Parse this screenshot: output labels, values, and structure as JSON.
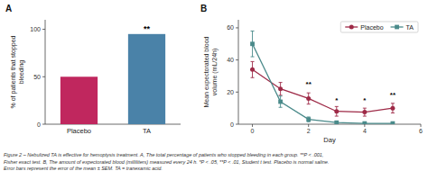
{
  "chart_data": [
    {
      "type": "bar",
      "title": "A",
      "categories": [
        "Placebo",
        "TA"
      ],
      "values": [
        50,
        95
      ],
      "colors": [
        "#c0275e",
        "#4a82a8"
      ],
      "ylabel": "% of patients that stopped\nbleeding",
      "ylim": [
        0,
        110
      ],
      "yticks": [
        0,
        50,
        100
      ],
      "annotations": [
        {
          "x": "TA",
          "y": 97,
          "text": "**"
        }
      ]
    },
    {
      "type": "line",
      "title": "B",
      "x": [
        0,
        1,
        2,
        3,
        4,
        5
      ],
      "series": [
        {
          "name": "Placebo",
          "color": "#9e2a47",
          "marker": "circle",
          "values": [
            34,
            22,
            16,
            8,
            7.5,
            10
          ],
          "errors": [
            5,
            4,
            3.5,
            3,
            2.5,
            3
          ]
        },
        {
          "name": "TA",
          "color": "#4a8a8a",
          "marker": "square",
          "values": [
            50,
            14,
            3,
            1,
            0.5,
            0.5
          ],
          "errors": [
            8,
            3.5,
            1.5,
            0.8,
            0.5,
            0.5
          ]
        }
      ],
      "xlabel": "Day",
      "ylabel": "Mean expectorated blood\nvolume (mL/24h)",
      "xlim": [
        -0.5,
        6
      ],
      "ylim": [
        0,
        65
      ],
      "xticks": [
        0,
        2,
        4,
        6
      ],
      "yticks": [
        0,
        20,
        40,
        60
      ],
      "legend": "upper-right",
      "annotations": [
        {
          "x": 2,
          "y": 23,
          "text": "**"
        },
        {
          "x": 3,
          "y": 13,
          "text": "*"
        },
        {
          "x": 4,
          "y": 13,
          "text": "*"
        },
        {
          "x": 5,
          "y": 16,
          "text": "**"
        }
      ]
    }
  ],
  "caption": "Figure 2 – Nebulized TA is effective for hemoptysis treatment. A, The total percentage of patients who stopped bleeding in each group. **P < .001,\nFisher exact test. B, The amount of expectorated blood (milliliters) measured every 24 h. *P < .05, **P < .01, Student t test. Placebo is normal saline.\nError bars represent the error of the mean ± SEM. TA = tranexamic acid."
}
